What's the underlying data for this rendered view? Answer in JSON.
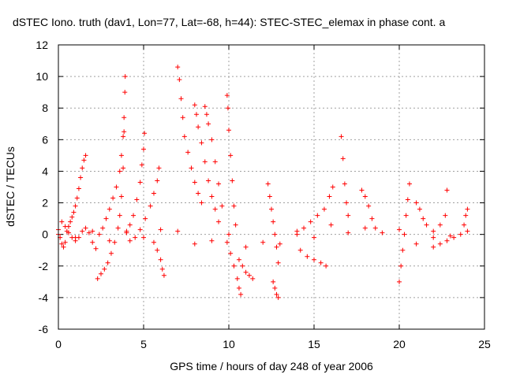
{
  "chart_data": {
    "type": "scatter",
    "title": "dSTEC Iono. truth (dav1, Lon=77, Lat=-68, h=44): STEC-STEC_elemax in phase cont. a",
    "xlabel": "GPS time / hours of day 248 of year 2006",
    "ylabel": "dSTEC  / TECUs",
    "xlim": [
      0,
      25
    ],
    "ylim": [
      -6,
      12
    ],
    "xticks": [
      "0",
      "5",
      "10",
      "15",
      "20",
      "25"
    ],
    "yticks": [
      "-6",
      "-4",
      "-2",
      "0",
      "2",
      "4",
      "6",
      "8",
      "10",
      "12"
    ],
    "grid": true,
    "marker": "+",
    "color": "#ff0000",
    "series": [
      {
        "values": [
          [
            0.0,
            0.3
          ],
          [
            0.1,
            -0.2
          ],
          [
            0.2,
            -0.6
          ],
          [
            0.3,
            -0.8
          ],
          [
            0.4,
            -0.5
          ],
          [
            0.5,
            0.2
          ],
          [
            0.6,
            0.5
          ],
          [
            0.7,
            0.8
          ],
          [
            0.8,
            1.1
          ],
          [
            0.9,
            1.4
          ],
          [
            1.0,
            1.8
          ],
          [
            1.1,
            2.3
          ],
          [
            1.2,
            2.9
          ],
          [
            1.3,
            3.6
          ],
          [
            1.4,
            4.2
          ],
          [
            1.5,
            4.7
          ],
          [
            1.6,
            5.0
          ]
        ]
      },
      {
        "values": [
          [
            0.2,
            0.8
          ],
          [
            0.4,
            0.5
          ],
          [
            0.6,
            0.1
          ],
          [
            0.8,
            -0.2
          ],
          [
            1.0,
            -0.4
          ],
          [
            1.2,
            -0.2
          ],
          [
            1.4,
            0.2
          ],
          [
            1.6,
            0.4
          ],
          [
            1.8,
            0.1
          ],
          [
            2.0,
            -0.5
          ],
          [
            2.2,
            -0.9
          ]
        ]
      },
      {
        "values": [
          [
            2.3,
            -2.8
          ],
          [
            2.5,
            -2.5
          ],
          [
            2.7,
            -2.2
          ],
          [
            2.9,
            -1.8
          ],
          [
            3.1,
            -1.2
          ],
          [
            3.3,
            -0.5
          ],
          [
            3.5,
            0.4
          ],
          [
            3.6,
            1.2
          ],
          [
            3.7,
            2.4
          ],
          [
            3.8,
            4.2
          ],
          [
            3.85,
            6.5
          ],
          [
            3.9,
            9.0
          ],
          [
            3.92,
            10.0
          ]
        ]
      },
      {
        "values": [
          [
            2.4,
            0.0
          ],
          [
            2.6,
            0.4
          ],
          [
            2.8,
            1.0
          ],
          [
            3.0,
            1.6
          ],
          [
            3.2,
            2.3
          ],
          [
            3.4,
            3.0
          ],
          [
            3.6,
            4.0
          ],
          [
            3.7,
            5.0
          ],
          [
            3.8,
            6.2
          ],
          [
            3.85,
            7.4
          ]
        ]
      },
      {
        "values": [
          [
            4.0,
            0.2
          ],
          [
            4.2,
            0.6
          ],
          [
            4.4,
            1.2
          ],
          [
            4.6,
            2.2
          ],
          [
            4.8,
            3.3
          ],
          [
            4.9,
            4.4
          ],
          [
            5.0,
            5.4
          ],
          [
            5.05,
            6.4
          ]
        ]
      },
      {
        "values": [
          [
            4.2,
            -0.4
          ],
          [
            4.5,
            -0.2
          ],
          [
            4.8,
            0.3
          ],
          [
            5.1,
            1.0
          ],
          [
            5.4,
            1.8
          ],
          [
            5.6,
            2.6
          ],
          [
            5.8,
            3.4
          ],
          [
            5.9,
            4.2
          ]
        ]
      },
      {
        "values": [
          [
            5.6,
            -0.5
          ],
          [
            5.8,
            -1.0
          ],
          [
            6.0,
            -1.6
          ],
          [
            6.1,
            -2.2
          ],
          [
            6.2,
            -2.6
          ]
        ]
      },
      {
        "values": [
          [
            7.0,
            10.6
          ],
          [
            7.1,
            9.8
          ],
          [
            7.2,
            8.6
          ],
          [
            7.3,
            7.4
          ],
          [
            7.4,
            6.2
          ],
          [
            7.6,
            5.2
          ],
          [
            7.8,
            4.2
          ],
          [
            8.0,
            3.3
          ],
          [
            8.2,
            2.6
          ],
          [
            8.4,
            2.0
          ]
        ]
      },
      {
        "values": [
          [
            8.0,
            8.2
          ],
          [
            8.1,
            7.6
          ],
          [
            8.2,
            6.8
          ],
          [
            8.4,
            5.8
          ],
          [
            8.6,
            4.6
          ],
          [
            8.8,
            3.4
          ],
          [
            9.0,
            2.4
          ],
          [
            9.2,
            1.6
          ],
          [
            9.4,
            0.8
          ]
        ]
      },
      {
        "values": [
          [
            8.6,
            8.1
          ],
          [
            8.7,
            7.6
          ],
          [
            8.8,
            7.0
          ],
          [
            9.0,
            6.0
          ],
          [
            9.2,
            4.6
          ],
          [
            9.4,
            3.2
          ],
          [
            9.6,
            1.8
          ]
        ]
      },
      {
        "values": [
          [
            9.9,
            8.8
          ],
          [
            9.95,
            8.0
          ],
          [
            10.0,
            6.6
          ],
          [
            10.1,
            5.0
          ],
          [
            10.2,
            3.4
          ],
          [
            10.3,
            1.8
          ],
          [
            10.4,
            0.6
          ]
        ]
      },
      {
        "values": [
          [
            9.9,
            -0.5
          ],
          [
            10.1,
            -1.2
          ],
          [
            10.3,
            -2.0
          ],
          [
            10.5,
            -2.8
          ],
          [
            10.6,
            -3.4
          ],
          [
            10.7,
            -3.8
          ]
        ]
      },
      {
        "values": [
          [
            10.6,
            -1.6
          ],
          [
            10.8,
            -2.0
          ],
          [
            11.0,
            -2.4
          ],
          [
            11.2,
            -2.6
          ],
          [
            11.4,
            -2.8
          ]
        ]
      },
      {
        "values": [
          [
            12.3,
            3.2
          ],
          [
            12.4,
            2.4
          ],
          [
            12.5,
            1.6
          ],
          [
            12.6,
            0.8
          ],
          [
            12.7,
            0.0
          ],
          [
            12.8,
            -0.8
          ],
          [
            12.9,
            -1.8
          ],
          [
            12.6,
            -3.0
          ],
          [
            12.7,
            -3.4
          ],
          [
            12.8,
            -3.8
          ],
          [
            12.9,
            -4.0
          ]
        ]
      },
      {
        "values": [
          [
            14.0,
            0.0
          ],
          [
            14.4,
            0.4
          ],
          [
            14.8,
            0.8
          ],
          [
            15.2,
            1.2
          ],
          [
            15.6,
            1.6
          ],
          [
            15.9,
            2.4
          ],
          [
            16.1,
            3.0
          ]
        ]
      },
      {
        "values": [
          [
            14.2,
            -1.0
          ],
          [
            14.6,
            -1.4
          ],
          [
            15.0,
            -1.6
          ],
          [
            15.4,
            -1.8
          ],
          [
            15.7,
            -2.0
          ]
        ]
      },
      {
        "values": [
          [
            16.6,
            6.2
          ],
          [
            16.7,
            4.8
          ],
          [
            16.8,
            3.2
          ],
          [
            16.9,
            2.0
          ],
          [
            17.0,
            1.2
          ]
        ]
      },
      {
        "values": [
          [
            17.8,
            2.8
          ],
          [
            18.0,
            2.4
          ],
          [
            18.2,
            1.8
          ],
          [
            18.4,
            1.0
          ],
          [
            18.6,
            0.4
          ]
        ]
      },
      {
        "values": [
          [
            20.0,
            -3.0
          ],
          [
            20.1,
            -2.0
          ],
          [
            20.2,
            -1.0
          ],
          [
            20.3,
            0.0
          ],
          [
            20.4,
            1.2
          ],
          [
            20.5,
            2.2
          ],
          [
            20.6,
            3.2
          ]
        ]
      },
      {
        "values": [
          [
            21.0,
            2.0
          ],
          [
            21.2,
            1.6
          ],
          [
            21.4,
            1.0
          ],
          [
            21.6,
            0.6
          ],
          [
            22.0,
            0.2
          ],
          [
            22.4,
            0.6
          ],
          [
            22.7,
            1.2
          ],
          [
            22.8,
            2.8
          ]
        ]
      },
      {
        "values": [
          [
            22.0,
            -0.8
          ],
          [
            22.4,
            -0.6
          ],
          [
            22.8,
            -0.4
          ],
          [
            23.2,
            -0.2
          ],
          [
            23.6,
            0.0
          ],
          [
            23.8,
            0.6
          ],
          [
            23.9,
            1.2
          ],
          [
            24.0,
            1.6
          ]
        ]
      },
      {
        "values": [
          [
            0.0,
            0.0
          ],
          [
            2.0,
            0.2
          ],
          [
            4.0,
            0.1
          ],
          [
            6.0,
            0.3
          ],
          [
            8.0,
            -0.6
          ],
          [
            10.0,
            0.0
          ],
          [
            12.0,
            -0.5
          ],
          [
            14.0,
            0.2
          ],
          [
            16.0,
            0.6
          ],
          [
            18.0,
            0.4
          ],
          [
            20.0,
            0.3
          ],
          [
            22.0,
            -0.2
          ],
          [
            24.0,
            0.2
          ]
        ]
      },
      {
        "values": [
          [
            1.0,
            -0.2
          ],
          [
            3.0,
            -0.4
          ],
          [
            5.0,
            -0.2
          ],
          [
            7.0,
            0.2
          ],
          [
            9.0,
            -0.4
          ],
          [
            11.0,
            -0.8
          ],
          [
            13.0,
            -0.6
          ],
          [
            15.0,
            -0.2
          ],
          [
            17.0,
            0.1
          ],
          [
            19.0,
            0.1
          ],
          [
            21.0,
            -0.6
          ],
          [
            23.0,
            -0.1
          ]
        ]
      }
    ]
  }
}
